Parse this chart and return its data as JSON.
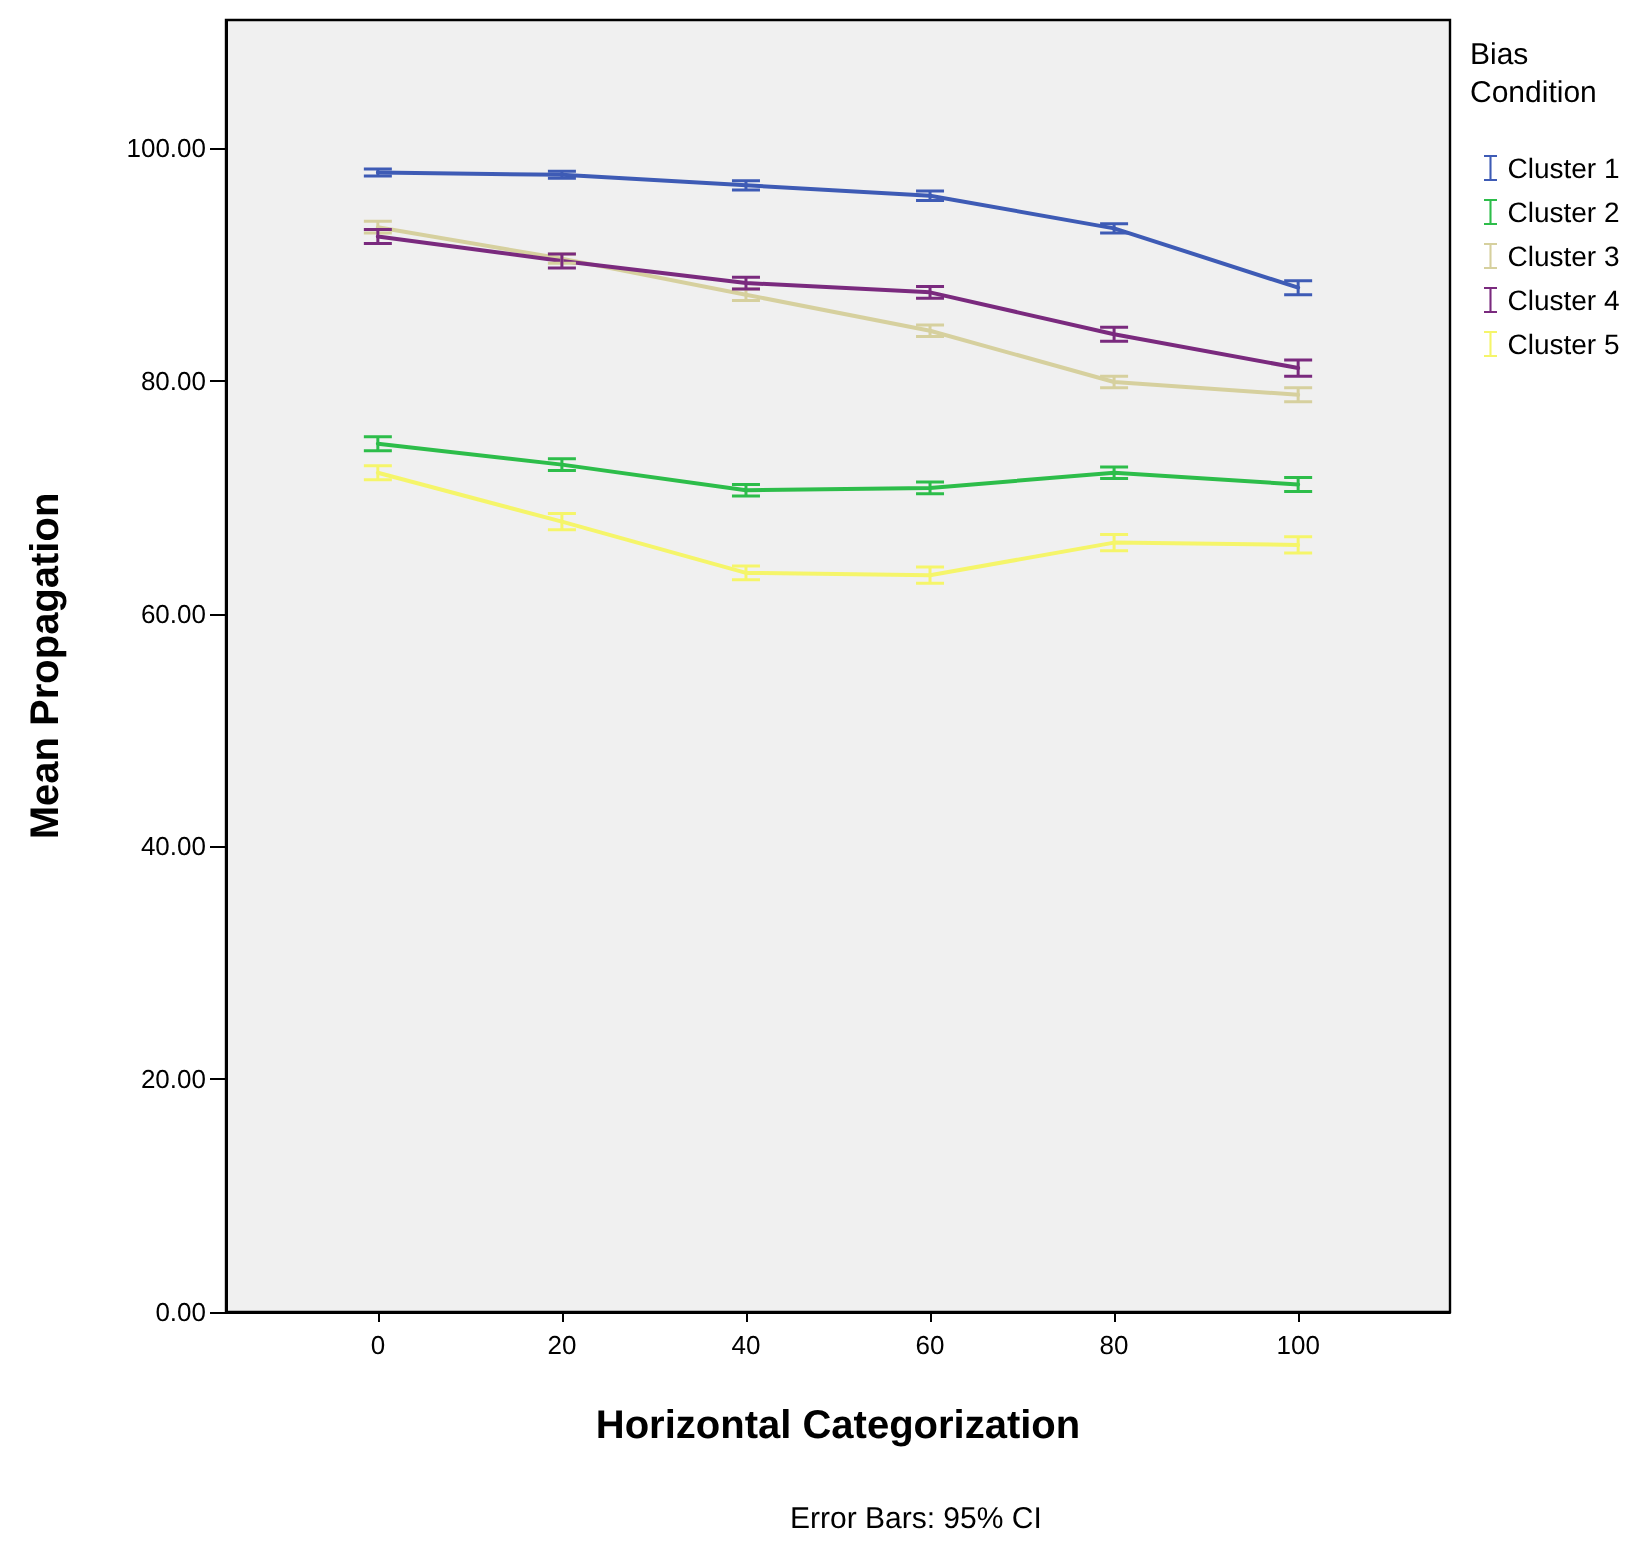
{
  "chart_data": {
    "type": "line",
    "xlabel": "Horizontal Categorization",
    "ylabel": "Mean Propagation",
    "legend_title": "Bias Condition",
    "annotations": [
      "Error Bars: 95% CI"
    ],
    "x": [
      0,
      20,
      40,
      60,
      80,
      100
    ],
    "xlim": [
      -16.5,
      116.5
    ],
    "xticks": [
      0,
      20,
      40,
      60,
      80,
      100
    ],
    "ylim": [
      0,
      111
    ],
    "yticks": [
      {
        "value": 0,
        "label": "0.00"
      },
      {
        "value": 20,
        "label": "20.00"
      },
      {
        "value": 40,
        "label": "40.00"
      },
      {
        "value": 60,
        "label": "60.00"
      },
      {
        "value": 80,
        "label": "80.00"
      },
      {
        "value": 100,
        "label": "100.00"
      }
    ],
    "grid": false,
    "legend": "right",
    "marker": "none",
    "series": [
      {
        "name": "Cluster 1",
        "color": "#3e5bb5",
        "values": [
          97.9,
          97.7,
          96.8,
          95.9,
          93.1,
          88.0
        ],
        "errors": [
          0.3,
          0.3,
          0.4,
          0.4,
          0.4,
          0.6
        ]
      },
      {
        "name": "Cluster 2",
        "color": "#2dbd4a",
        "values": [
          74.6,
          72.8,
          70.6,
          70.8,
          72.1,
          71.1
        ],
        "errors": [
          0.6,
          0.5,
          0.5,
          0.5,
          0.5,
          0.6
        ]
      },
      {
        "name": "Cluster 3",
        "color": "#d6d09e",
        "values": [
          93.2,
          90.5,
          87.4,
          84.3,
          79.9,
          78.8
        ],
        "errors": [
          0.5,
          0.4,
          0.5,
          0.5,
          0.5,
          0.6
        ]
      },
      {
        "name": "Cluster 4",
        "color": "#7a2a7e",
        "values": [
          92.4,
          90.3,
          88.4,
          87.6,
          84.0,
          81.1
        ],
        "errors": [
          0.6,
          0.6,
          0.5,
          0.5,
          0.6,
          0.7
        ]
      },
      {
        "name": "Cluster 5",
        "color": "#f5f56a",
        "values": [
          72.1,
          67.9,
          63.5,
          63.3,
          66.1,
          65.9
        ],
        "errors": [
          0.6,
          0.7,
          0.6,
          0.7,
          0.7,
          0.7
        ]
      }
    ]
  }
}
